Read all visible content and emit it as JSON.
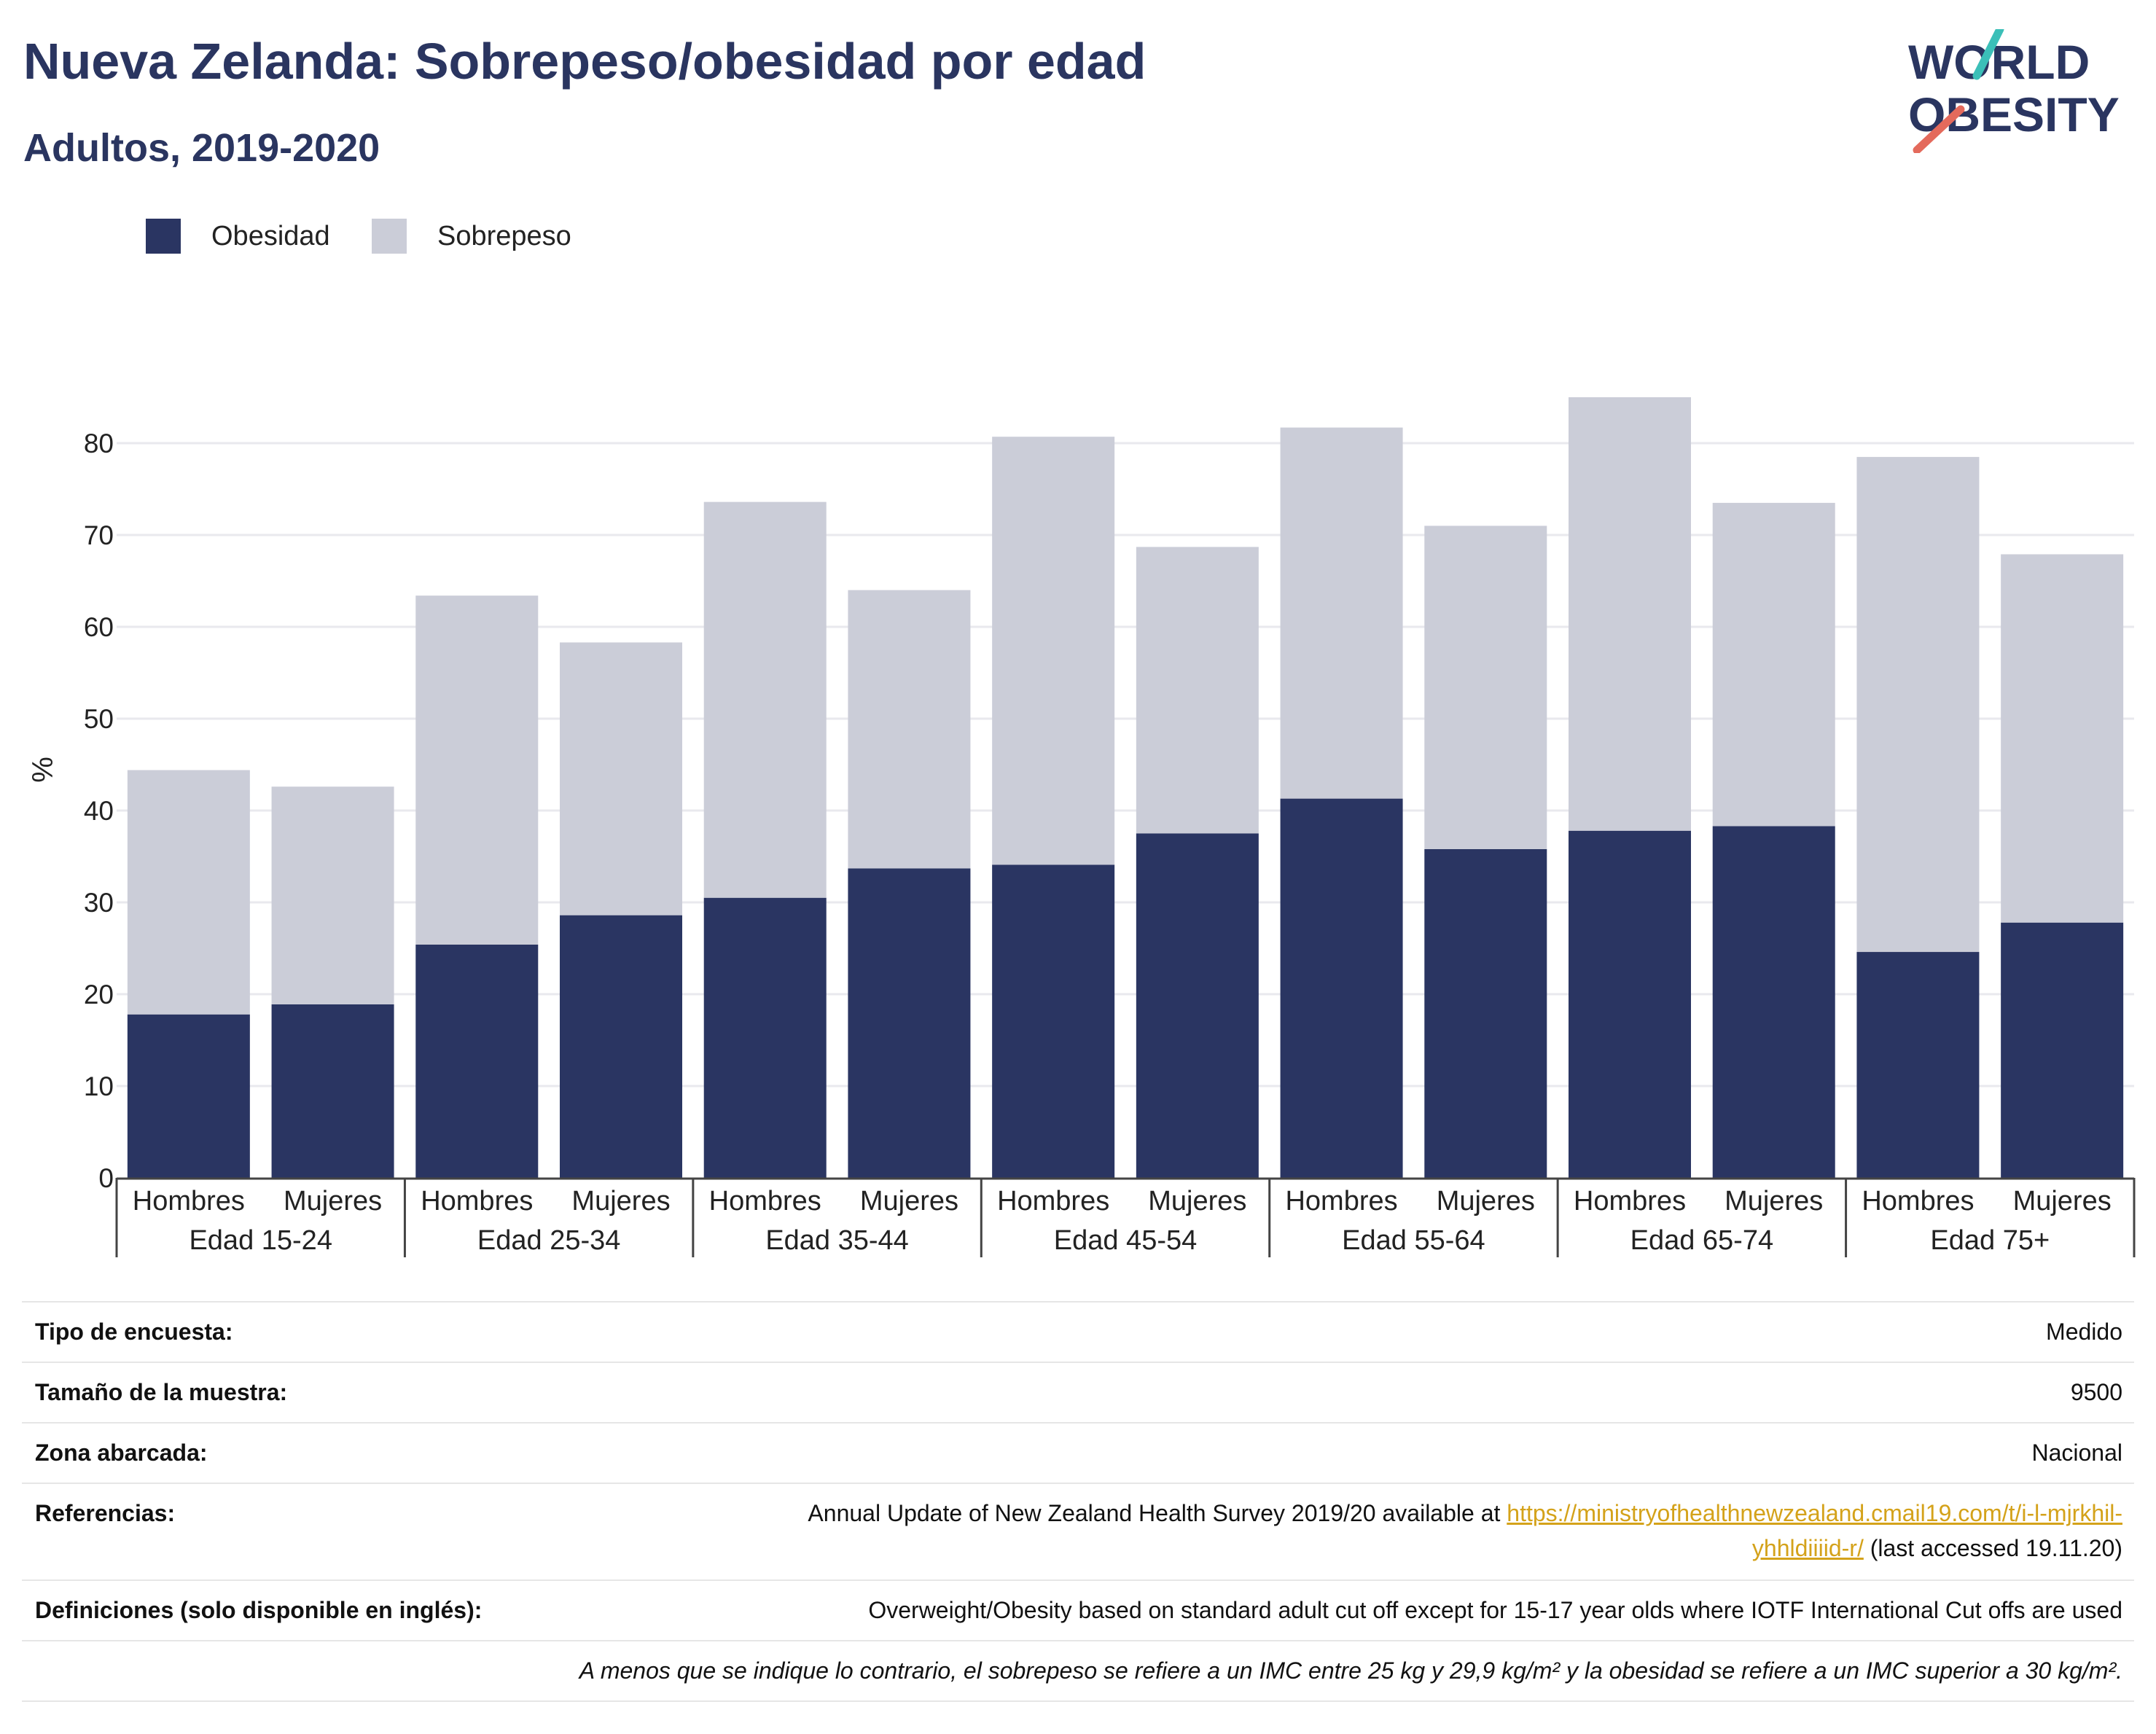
{
  "header": {
    "title": "Nueva Zelanda: Sobrepeso/obesidad por edad",
    "subtitle": "Adultos, 2019-2020"
  },
  "logo": {
    "line1": "WORLD",
    "line2": "OBESITY"
  },
  "colors": {
    "obesity": "#2a3562",
    "overweight": "#cbcdd8",
    "title": "#2a3560",
    "link": "#d4a21a",
    "logo_teal": "#3bbfb8",
    "logo_coral": "#e46a5c"
  },
  "chart_data": {
    "type": "bar",
    "stacked": true,
    "ylabel": "%",
    "ylim": [
      0,
      90
    ],
    "yticks": [
      0,
      10,
      20,
      30,
      40,
      50,
      60,
      70,
      80
    ],
    "grid": true,
    "legend_position": "top-left",
    "groups": [
      "Edad 15-24",
      "Edad 25-34",
      "Edad 35-44",
      "Edad 45-54",
      "Edad 55-64",
      "Edad 65-74",
      "Edad 75+"
    ],
    "categories": [
      "Hombres",
      "Mujeres",
      "Hombres",
      "Mujeres",
      "Hombres",
      "Mujeres",
      "Hombres",
      "Mujeres",
      "Hombres",
      "Mujeres",
      "Hombres",
      "Mujeres",
      "Hombres",
      "Mujeres"
    ],
    "series": [
      {
        "name": "Obesidad",
        "values": [
          17.8,
          18.9,
          25.4,
          28.6,
          30.5,
          33.7,
          34.1,
          37.5,
          41.3,
          35.8,
          37.8,
          38.3,
          24.6,
          27.8
        ]
      },
      {
        "name": "Sobrepeso",
        "values": [
          26.6,
          23.7,
          38.0,
          29.7,
          43.1,
          30.3,
          46.6,
          31.2,
          40.4,
          35.2,
          47.2,
          35.2,
          53.9,
          40.1
        ]
      }
    ]
  },
  "info": {
    "survey_type": {
      "label": "Tipo de encuesta:",
      "value": "Medido"
    },
    "sample_size": {
      "label": "Tamaño de la muestra:",
      "value": "9500"
    },
    "coverage": {
      "label": "Zona abarcada:",
      "value": "Nacional"
    },
    "references": {
      "label": "Referencias:",
      "text_before": "Annual Update of New Zealand Health Survey 2019/20 available at ",
      "link_line1": "https://ministryofhealthnewzealand.cmail19.com/t/i-l-mjrkhil-",
      "link_line2": "yhhldiiiid-r/",
      "text_after": " (last accessed 19.11.20)"
    },
    "definitions": {
      "label": "Definiciones (solo disponible en inglés):",
      "value": "Overweight/Obesity based on standard adult cut off except for 15-17 year olds where IOTF International Cut offs are used"
    },
    "note": "A menos que se indique lo contrario, el sobrepeso se refiere a un IMC entre 25 kg y 29,9 kg/m² y la obesidad se refiere a un IMC superior a 30 kg/m²."
  }
}
